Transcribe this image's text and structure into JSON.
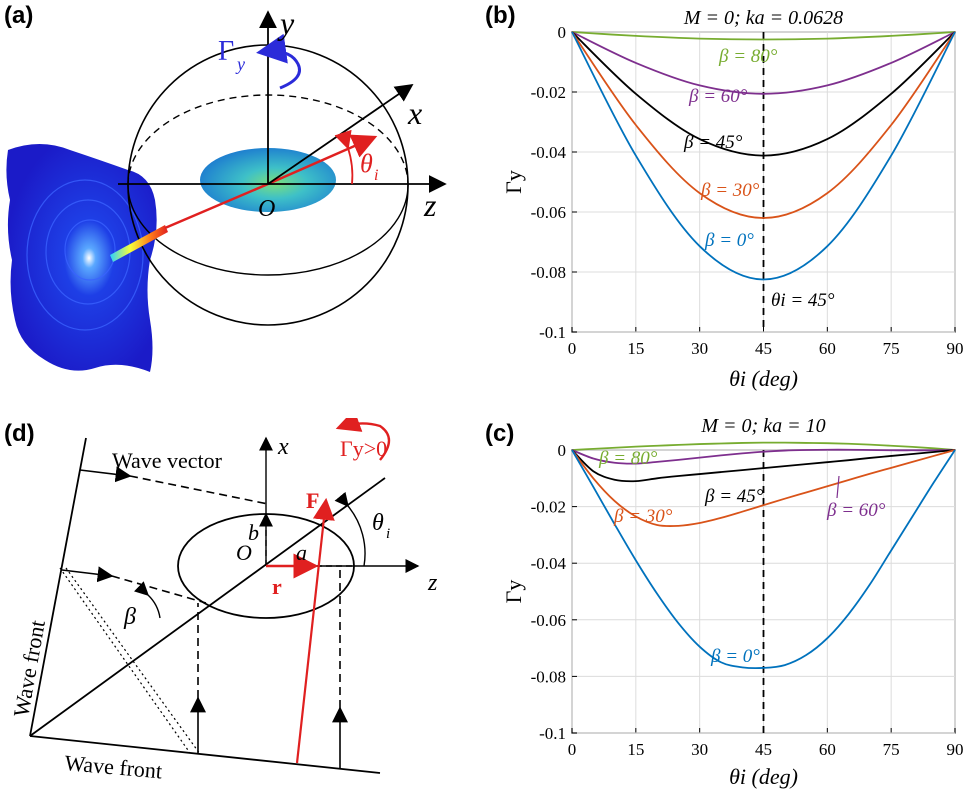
{
  "panels": {
    "a": "(a)",
    "b": "(b)",
    "c": "(c)",
    "d": "(d)"
  },
  "figure_a": {
    "y_axis": "y",
    "x_axis": "x",
    "z_axis": "z",
    "origin": "O",
    "torque_symbol": "Γ",
    "torque_sub": "y",
    "angle_symbol": "θ",
    "angle_sub": "i",
    "colors": {
      "torque_arrow": "#2b2bd9",
      "beam": "#e02020",
      "ellipse": "#2e9fd8"
    }
  },
  "figure_d": {
    "x_axis": "x",
    "z_axis": "z",
    "origin": "O",
    "wave_vector": "Wave vector",
    "wave_front_left": "Wave front",
    "wave_front_bottom": "Wave front",
    "force": "F",
    "position": "r",
    "semi_a": "a",
    "semi_b": "b",
    "beta": "β",
    "theta": "θ",
    "theta_sub": "i",
    "torque_label": "Γy>0",
    "colors": {
      "red": "#e02020"
    }
  },
  "chart_data": [
    {
      "type": "line",
      "title": "M = 0; ka = 0.0628",
      "xlabel": "θi (deg)",
      "ylabel": "Γy",
      "xlim": [
        0,
        90
      ],
      "ylim": [
        -0.1,
        0
      ],
      "xticks": [
        "0",
        "15",
        "30",
        "45",
        "60",
        "75",
        "90"
      ],
      "yticks": [
        "0",
        "-0.02",
        "-0.04",
        "-0.06",
        "-0.08",
        "-0.1"
      ],
      "grid": true,
      "vline": 45,
      "vline_label": "θi = 45°",
      "x": [
        0,
        15,
        30,
        45,
        60,
        75,
        90
      ],
      "series": [
        {
          "name": "β = 80°",
          "color": "#77ac30",
          "values": [
            0,
            -0.0013,
            -0.0022,
            -0.0025,
            -0.0022,
            -0.0013,
            0
          ]
        },
        {
          "name": "β = 60°",
          "color": "#7e2f8e",
          "values": [
            0,
            -0.0103,
            -0.0178,
            -0.0206,
            -0.0178,
            -0.0103,
            0
          ]
        },
        {
          "name": "β = 45°",
          "color": "#000000",
          "values": [
            0,
            -0.0206,
            -0.0357,
            -0.0412,
            -0.0357,
            -0.0206,
            0
          ]
        },
        {
          "name": "β = 30°",
          "color": "#d95319",
          "values": [
            0,
            -0.031,
            -0.0537,
            -0.062,
            -0.0537,
            -0.031,
            0
          ]
        },
        {
          "name": "β = 0°",
          "color": "#0072bd",
          "values": [
            0,
            -0.0412,
            -0.0714,
            -0.0825,
            -0.0714,
            -0.0412,
            0
          ]
        }
      ]
    },
    {
      "type": "line",
      "title": "M = 0; ka = 10",
      "xlabel": "θi (deg)",
      "ylabel": "Γy",
      "xlim": [
        0,
        90
      ],
      "ylim": [
        -0.1,
        0
      ],
      "xticks": [
        "0",
        "15",
        "30",
        "45",
        "60",
        "75",
        "90"
      ],
      "yticks": [
        "0",
        "-0.02",
        "-0.04",
        "-0.06",
        "-0.08",
        "-0.1"
      ],
      "grid": true,
      "vline": 45,
      "x": [
        0,
        5,
        10,
        15,
        20,
        25,
        30,
        35,
        40,
        45,
        50,
        55,
        60,
        65,
        70,
        75,
        80,
        85,
        90
      ],
      "series": [
        {
          "name": "β = 80°",
          "color": "#77ac30",
          "values": [
            0,
            0.0004,
            0.0008,
            0.0012,
            0.0015,
            0.0018,
            0.0021,
            0.0023,
            0.0025,
            0.0026,
            0.0026,
            0.0025,
            0.0024,
            0.0022,
            0.0019,
            0.0015,
            0.0011,
            0.0006,
            0
          ]
        },
        {
          "name": "β = 60°",
          "color": "#7e2f8e",
          "values": [
            0,
            -0.003,
            -0.0045,
            -0.0048,
            -0.0042,
            -0.0035,
            -0.0027,
            -0.0019,
            -0.0012,
            -0.0006,
            -0.0002,
            0.0,
            0.0001,
            0.0001,
            0.0,
            -0.0001,
            -0.0001,
            -0.0001,
            0
          ]
        },
        {
          "name": "β = 45°",
          "color": "#000000",
          "values": [
            0,
            -0.0075,
            -0.0105,
            -0.011,
            -0.01,
            -0.0092,
            -0.0085,
            -0.0078,
            -0.0071,
            -0.0064,
            -0.0057,
            -0.005,
            -0.0043,
            -0.0036,
            -0.0028,
            -0.0021,
            -0.0014,
            -0.0007,
            0
          ]
        },
        {
          "name": "β = 30°",
          "color": "#d95319",
          "values": [
            0,
            -0.01,
            -0.018,
            -0.0235,
            -0.0265,
            -0.0268,
            -0.0258,
            -0.024,
            -0.0218,
            -0.0195,
            -0.0172,
            -0.015,
            -0.0128,
            -0.0106,
            -0.0084,
            -0.0063,
            -0.0042,
            -0.0021,
            0
          ]
        },
        {
          "name": "β = 0°",
          "color": "#0072bd",
          "values": [
            0,
            -0.013,
            -0.0262,
            -0.039,
            -0.0508,
            -0.0612,
            -0.0695,
            -0.075,
            -0.0768,
            -0.077,
            -0.076,
            -0.0725,
            -0.0665,
            -0.058,
            -0.0475,
            -0.0355,
            -0.0235,
            -0.0115,
            0
          ]
        }
      ]
    }
  ]
}
